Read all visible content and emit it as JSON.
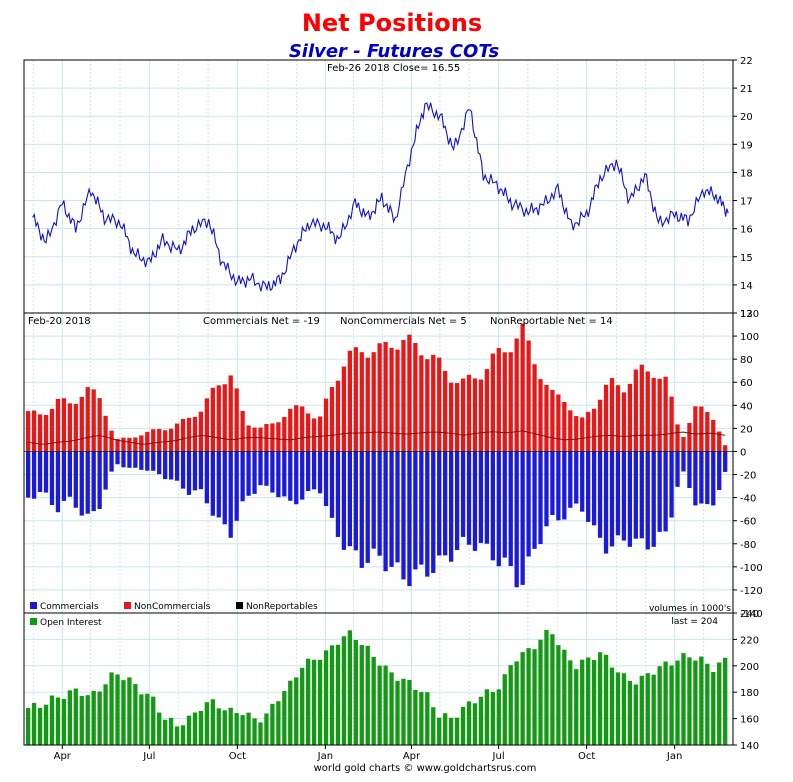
{
  "header": {
    "title": "Net Positions",
    "subtitle": "Silver - Futures COTs",
    "footer": "world gold charts © www.goldchartsrus.com"
  },
  "colors": {
    "title": "#ff0000",
    "subtitle": "#0000cc",
    "price_line": "#1010d0",
    "commercials": "#1a1adc",
    "noncommercials": "#e81818",
    "nonreportables": "#000000",
    "open_interest": "#129a12",
    "grid": "#c8e8f0"
  },
  "chart_data": [
    {
      "type": "line",
      "name": "price-panel",
      "info": "Feb-26  2018   Close= 16.55",
      "ylim": [
        13,
        22
      ],
      "yticks": [
        13,
        14,
        15,
        16,
        17,
        18,
        19,
        20,
        21,
        22
      ],
      "x": [
        "2017-03-01",
        "2017-03-15",
        "2017-04-01",
        "2017-04-15",
        "2017-05-01",
        "2017-05-15",
        "2017-06-01",
        "2017-06-15",
        "2017-07-01",
        "2017-07-15",
        "2017-08-01",
        "2017-08-15",
        "2017-09-01",
        "2017-09-15",
        "2017-10-01",
        "2017-10-15",
        "2017-11-01",
        "2017-11-15",
        "2017-12-01",
        "2017-12-15",
        "2018-01-01",
        "2018-01-15",
        "2018-02-01",
        "2018-02-15",
        "2018-03-01",
        "2018-03-15",
        "2018-04-01",
        "2018-04-15",
        "2018-05-01",
        "2018-05-15",
        "2018-06-01",
        "2018-06-15",
        "2018-07-01",
        "2018-07-15",
        "2018-08-01",
        "2018-08-15",
        "2018-09-01",
        "2018-09-15",
        "2018-10-01",
        "2018-10-15",
        "2018-11-01",
        "2018-11-15",
        "2018-12-01",
        "2018-12-15",
        "2019-01-01",
        "2019-01-15",
        "2019-02-01",
        "2019-02-15",
        "2019-02-26"
      ],
      "values": [
        16.4,
        15.5,
        16.9,
        16.0,
        17.4,
        16.4,
        16.2,
        15.1,
        14.8,
        15.6,
        15.2,
        16.0,
        16.3,
        14.8,
        14.1,
        14.2,
        13.9,
        14.2,
        15.4,
        16.2,
        16.1,
        15.6,
        16.9,
        16.4,
        17.1,
        16.3,
        18.8,
        20.4,
        20.0,
        18.8,
        20.3,
        17.9,
        17.5,
        16.9,
        16.6,
        16.8,
        17.4,
        16.1,
        16.5,
        17.8,
        18.4,
        17.0,
        17.9,
        16.2,
        16.5,
        16.3,
        17.4,
        17.1,
        16.55
      ]
    },
    {
      "type": "bar",
      "name": "net-positions-panel",
      "info_date": "Feb-20  2018",
      "info_commercials": "Commercials Net = -19",
      "info_noncommercials": "NonCommercials Net = 5",
      "info_nonreportables": "NonReportable Net = 14",
      "units_note": "volumes in 1000's",
      "ylim": [
        -140,
        120
      ],
      "yticks": [
        -140,
        -120,
        -100,
        -80,
        -60,
        -40,
        -20,
        0,
        20,
        40,
        60,
        80,
        100,
        120
      ],
      "x": [
        "2017-03-01",
        "2017-03-15",
        "2017-04-01",
        "2017-04-15",
        "2017-05-01",
        "2017-05-15",
        "2017-06-01",
        "2017-06-15",
        "2017-07-01",
        "2017-07-15",
        "2017-08-01",
        "2017-08-15",
        "2017-09-01",
        "2017-09-15",
        "2017-10-01",
        "2017-10-15",
        "2017-11-01",
        "2017-11-15",
        "2017-12-01",
        "2017-12-15",
        "2018-01-01",
        "2018-01-15",
        "2018-02-01",
        "2018-02-15",
        "2018-03-01",
        "2018-03-15",
        "2018-04-01",
        "2018-04-15",
        "2018-05-01",
        "2018-05-15",
        "2018-06-01",
        "2018-06-15",
        "2018-07-01",
        "2018-07-15",
        "2018-08-01",
        "2018-08-15",
        "2018-09-01",
        "2018-09-15",
        "2018-10-01",
        "2018-10-15",
        "2018-11-01",
        "2018-11-15",
        "2018-12-01",
        "2018-12-15",
        "2019-01-01",
        "2019-01-15",
        "2019-02-01",
        "2019-02-15",
        "2019-02-20"
      ],
      "series": [
        {
          "name": "Commercials",
          "values": [
            -40,
            -35,
            -50,
            -40,
            -60,
            -45,
            -10,
            -15,
            -15,
            -20,
            -25,
            -35,
            -35,
            -60,
            -70,
            -40,
            -30,
            -35,
            -45,
            -40,
            -30,
            -65,
            -85,
            -95,
            -90,
            -100,
            -110,
            -105,
            -100,
            -90,
            -80,
            -80,
            -90,
            -100,
            -115,
            -80,
            -60,
            -55,
            -45,
            -70,
            -85,
            -75,
            -80,
            -80,
            -70,
            -15,
            -45,
            -50,
            -19
          ]
        },
        {
          "name": "NonCommercials",
          "values": [
            35,
            30,
            45,
            40,
            55,
            45,
            10,
            12,
            15,
            20,
            20,
            30,
            35,
            60,
            65,
            25,
            20,
            25,
            35,
            40,
            25,
            60,
            80,
            90,
            85,
            95,
            95,
            90,
            80,
            65,
            60,
            65,
            80,
            90,
            105,
            75,
            50,
            45,
            25,
            40,
            60,
            55,
            70,
            70,
            60,
            10,
            38,
            35,
            5
          ]
        },
        {
          "name": "NonReportables",
          "values": [
            8,
            6,
            8,
            9,
            12,
            14,
            10,
            8,
            6,
            8,
            9,
            12,
            14,
            12,
            10,
            12,
            12,
            11,
            10,
            12,
            13,
            14,
            16,
            16,
            17,
            16,
            15,
            16,
            17,
            16,
            14,
            16,
            17,
            16,
            18,
            15,
            12,
            10,
            11,
            13,
            14,
            13,
            14,
            14,
            15,
            17,
            15,
            16,
            14
          ]
        }
      ]
    },
    {
      "type": "bar",
      "name": "open-interest-panel",
      "legend": "Open Interest",
      "last_label": "last = 204",
      "ylim": [
        140,
        240
      ],
      "yticks": [
        140,
        160,
        180,
        200,
        220,
        240
      ],
      "xticks": [
        "Apr",
        "Jul",
        "Oct",
        "Jan",
        "Apr",
        "Jul",
        "Oct",
        "Jan"
      ],
      "series": [
        {
          "name": "Open Interest",
          "values": [
            168,
            170,
            175,
            178,
            182,
            176,
            185,
            195,
            190,
            182,
            175,
            160,
            155,
            160,
            170,
            173,
            165,
            166,
            160,
            160,
            175,
            185,
            200,
            205,
            210,
            220,
            225,
            215,
            205,
            195,
            190,
            185,
            178,
            163,
            160,
            168,
            175,
            180,
            185,
            205,
            210,
            218,
            228,
            210,
            200,
            205,
            210,
            200,
            190,
            188,
            195,
            200,
            204,
            208,
            205,
            198,
            204
          ]
        }
      ]
    }
  ]
}
